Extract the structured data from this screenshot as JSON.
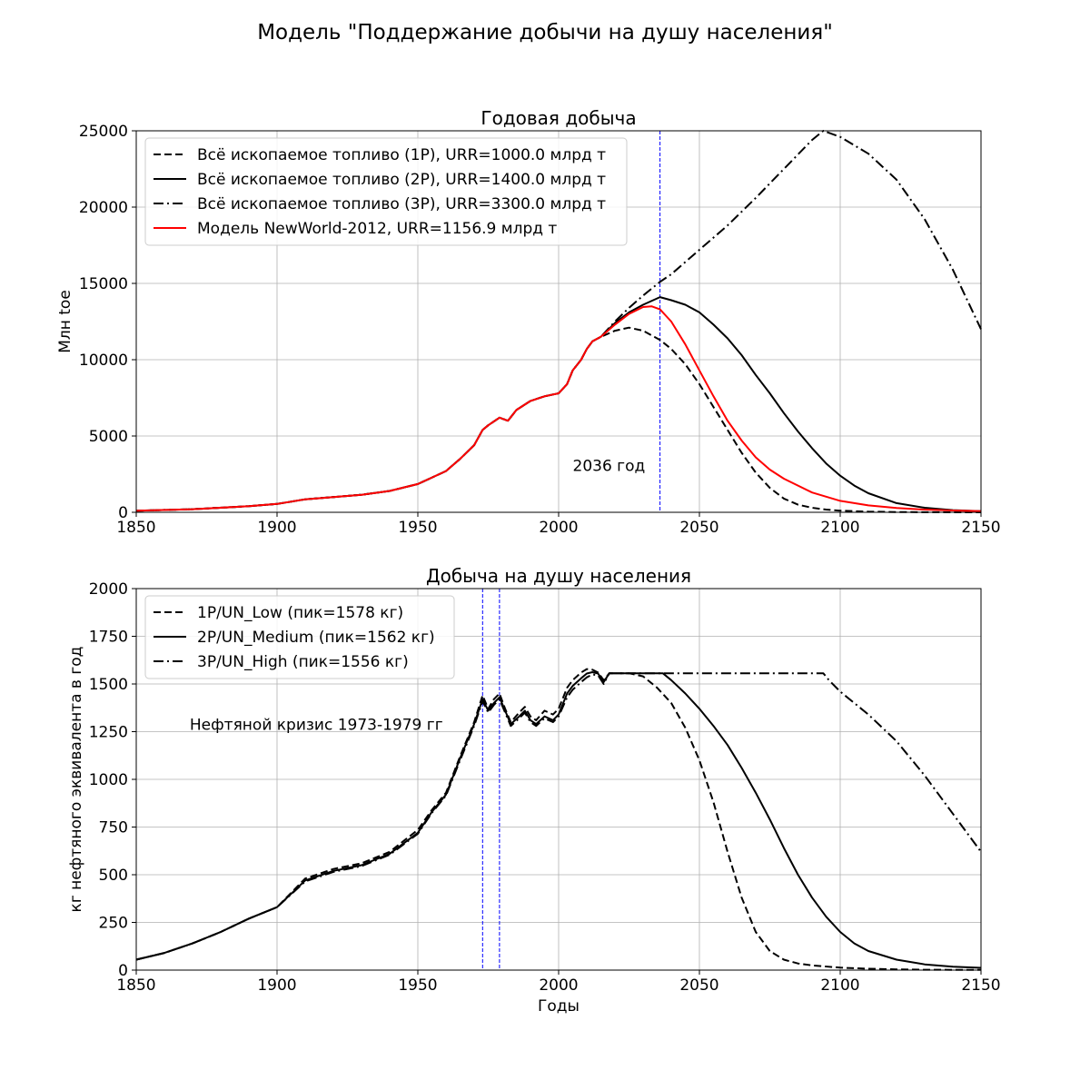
{
  "figure": {
    "suptitle": "Модель \"Поддержание добычи на душу населения\""
  },
  "chart_data": [
    {
      "type": "line",
      "title": "Годовая добыча",
      "xlabel": "",
      "ylabel": "Млн toe",
      "xlim": [
        1850,
        2150
      ],
      "ylim": [
        0,
        25000
      ],
      "xticks": [
        1850,
        1900,
        1950,
        2000,
        2050,
        2100,
        2150
      ],
      "yticks": [
        0,
        5000,
        10000,
        15000,
        20000,
        25000
      ],
      "grid": true,
      "legend_position": "top-left",
      "series": [
        {
          "name": "Всё ископаемое топливо (1P), URR=1000.0 млрд т",
          "style": "dashed",
          "color": "#000000",
          "x": [
            1850,
            1870,
            1890,
            1900,
            1910,
            1920,
            1930,
            1940,
            1950,
            1960,
            1965,
            1970,
            1973,
            1975,
            1979,
            1982,
            1985,
            1990,
            1995,
            2000,
            2003,
            2005,
            2008,
            2010,
            2012,
            2015,
            2020,
            2025,
            2030,
            2036,
            2040,
            2045,
            2050,
            2055,
            2060,
            2065,
            2070,
            2075,
            2080,
            2085,
            2090,
            2095,
            2100,
            2110,
            2120,
            2130,
            2150
          ],
          "y": [
            100,
            200,
            400,
            550,
            850,
            1000,
            1150,
            1400,
            1850,
            2700,
            3500,
            4400,
            5400,
            5700,
            6200,
            6000,
            6700,
            7300,
            7600,
            7800,
            8400,
            9300,
            10000,
            10700,
            11200,
            11500,
            11900,
            12100,
            11900,
            11300,
            10700,
            9700,
            8400,
            6900,
            5400,
            3900,
            2600,
            1600,
            900,
            500,
            300,
            180,
            110,
            40,
            15,
            5,
            1
          ]
        },
        {
          "name": "Всё ископаемое топливо (2P), URR=1400.0 млрд т",
          "style": "solid",
          "color": "#000000",
          "x": [
            1850,
            1870,
            1890,
            1900,
            1910,
            1920,
            1930,
            1940,
            1950,
            1960,
            1965,
            1970,
            1973,
            1975,
            1979,
            1982,
            1985,
            1990,
            1995,
            2000,
            2003,
            2005,
            2008,
            2010,
            2012,
            2015,
            2020,
            2025,
            2030,
            2036,
            2040,
            2045,
            2050,
            2055,
            2060,
            2065,
            2070,
            2075,
            2080,
            2085,
            2090,
            2095,
            2100,
            2105,
            2110,
            2120,
            2130,
            2140,
            2150
          ],
          "y": [
            100,
            200,
            400,
            550,
            850,
            1000,
            1150,
            1400,
            1850,
            2700,
            3500,
            4400,
            5400,
            5700,
            6200,
            6000,
            6700,
            7300,
            7600,
            7800,
            8400,
            9300,
            10000,
            10700,
            11200,
            11500,
            12400,
            13100,
            13600,
            14100,
            13900,
            13600,
            13100,
            12300,
            11400,
            10300,
            9000,
            7800,
            6500,
            5300,
            4200,
            3200,
            2400,
            1750,
            1250,
            600,
            300,
            140,
            70
          ]
        },
        {
          "name": "Всё ископаемое топливо (3P), URR=3300.0 млрд т",
          "style": "dashdot",
          "color": "#000000",
          "x": [
            1850,
            1870,
            1890,
            1900,
            1910,
            1920,
            1930,
            1940,
            1950,
            1960,
            1965,
            1970,
            1973,
            1975,
            1979,
            1982,
            1985,
            1990,
            1995,
            2000,
            2003,
            2005,
            2008,
            2010,
            2012,
            2015,
            2020,
            2025,
            2030,
            2036,
            2040,
            2050,
            2060,
            2070,
            2080,
            2090,
            2094,
            2100,
            2110,
            2120,
            2130,
            2140,
            2150
          ],
          "y": [
            100,
            200,
            400,
            550,
            850,
            1000,
            1150,
            1400,
            1850,
            2700,
            3500,
            4400,
            5400,
            5700,
            6200,
            6000,
            6700,
            7300,
            7600,
            7800,
            8400,
            9300,
            10000,
            10700,
            11200,
            11500,
            12500,
            13400,
            14200,
            15100,
            15600,
            17200,
            18800,
            20600,
            22500,
            24400,
            25000,
            24600,
            23500,
            21800,
            19200,
            15900,
            12000
          ]
        },
        {
          "name": "Модель NewWorld-2012, URR=1156.9 млрд т",
          "style": "solid",
          "color": "#ff0000",
          "x": [
            1850,
            1870,
            1890,
            1900,
            1910,
            1920,
            1930,
            1940,
            1950,
            1960,
            1965,
            1970,
            1973,
            1975,
            1979,
            1982,
            1985,
            1990,
            1995,
            2000,
            2003,
            2005,
            2008,
            2010,
            2012,
            2015,
            2020,
            2025,
            2030,
            2033,
            2036,
            2040,
            2045,
            2050,
            2055,
            2060,
            2065,
            2070,
            2075,
            2080,
            2090,
            2100,
            2110,
            2120,
            2130,
            2140,
            2150
          ],
          "y": [
            100,
            200,
            400,
            550,
            850,
            1000,
            1150,
            1400,
            1850,
            2700,
            3500,
            4400,
            5400,
            5700,
            6200,
            6000,
            6700,
            7300,
            7600,
            7800,
            8400,
            9300,
            10000,
            10700,
            11200,
            11500,
            12300,
            13000,
            13450,
            13500,
            13300,
            12500,
            11000,
            9300,
            7600,
            6000,
            4700,
            3600,
            2800,
            2200,
            1300,
            750,
            450,
            280,
            180,
            120,
            80
          ]
        }
      ],
      "vlines": [
        2036
      ],
      "annotations": [
        {
          "text": "2036 год",
          "x": 2005,
          "y": 2700
        }
      ]
    },
    {
      "type": "line",
      "title": "Добыча на душу населения",
      "xlabel": "Годы",
      "ylabel": "кг нефтяного эквивалента в год",
      "xlim": [
        1850,
        2150
      ],
      "ylim": [
        0,
        2000
      ],
      "xticks": [
        1850,
        1900,
        1950,
        2000,
        2050,
        2100,
        2150
      ],
      "yticks": [
        0,
        250,
        500,
        750,
        1000,
        1250,
        1500,
        1750,
        2000
      ],
      "grid": true,
      "legend_position": "top-left",
      "series": [
        {
          "name": "1P/UN_Low (пик=1578 кг)",
          "style": "dashed",
          "color": "#000000",
          "x": [
            1850,
            1860,
            1870,
            1880,
            1890,
            1900,
            1910,
            1920,
            1930,
            1940,
            1950,
            1955,
            1960,
            1965,
            1970,
            1973,
            1975,
            1977,
            1979,
            1981,
            1983,
            1986,
            1988,
            1990,
            1992,
            1995,
            1998,
            2000,
            2003,
            2005,
            2008,
            2010,
            2012,
            2014,
            2016,
            2018,
            2020,
            2025,
            2030,
            2035,
            2040,
            2045,
            2050,
            2055,
            2060,
            2065,
            2070,
            2075,
            2080,
            2085,
            2090,
            2100,
            2110,
            2120,
            2130,
            2150
          ],
          "y": [
            55,
            90,
            140,
            200,
            270,
            330,
            480,
            530,
            560,
            620,
            735,
            840,
            930,
            1120,
            1300,
            1440,
            1370,
            1420,
            1450,
            1370,
            1300,
            1350,
            1380,
            1330,
            1310,
            1360,
            1340,
            1370,
            1480,
            1520,
            1560,
            1578,
            1575,
            1560,
            1520,
            1556,
            1556,
            1556,
            1540,
            1480,
            1400,
            1270,
            1100,
            880,
            620,
            380,
            200,
            100,
            55,
            35,
            25,
            13,
            7,
            4,
            2,
            1
          ]
        },
        {
          "name": "2P/UN_Medium (пик=1562 кг)",
          "style": "solid",
          "color": "#000000",
          "x": [
            1850,
            1860,
            1870,
            1880,
            1890,
            1900,
            1910,
            1920,
            1930,
            1940,
            1950,
            1955,
            1960,
            1965,
            1970,
            1973,
            1975,
            1977,
            1979,
            1981,
            1983,
            1986,
            1988,
            1990,
            1992,
            1995,
            1998,
            2000,
            2003,
            2005,
            2008,
            2010,
            2012,
            2014,
            2016,
            2018,
            2020,
            2025,
            2030,
            2037,
            2040,
            2045,
            2050,
            2055,
            2060,
            2065,
            2070,
            2075,
            2080,
            2085,
            2090,
            2095,
            2100,
            2105,
            2110,
            2120,
            2130,
            2140,
            2150
          ],
          "y": [
            55,
            90,
            140,
            200,
            270,
            330,
            470,
            520,
            550,
            610,
            720,
            830,
            920,
            1110,
            1290,
            1420,
            1360,
            1400,
            1430,
            1360,
            1290,
            1330,
            1360,
            1310,
            1290,
            1330,
            1310,
            1340,
            1450,
            1490,
            1530,
            1555,
            1562,
            1555,
            1510,
            1556,
            1556,
            1556,
            1556,
            1556,
            1520,
            1450,
            1370,
            1280,
            1180,
            1060,
            930,
            790,
            640,
            500,
            380,
            280,
            200,
            140,
            100,
            55,
            30,
            18,
            12
          ]
        },
        {
          "name": "3P/UN_High (пик=1556 кг)",
          "style": "dashdot",
          "color": "#000000",
          "x": [
            1850,
            1860,
            1870,
            1880,
            1890,
            1900,
            1910,
            1920,
            1930,
            1940,
            1950,
            1955,
            1960,
            1965,
            1970,
            1973,
            1975,
            1977,
            1979,
            1981,
            1983,
            1986,
            1988,
            1990,
            1992,
            1995,
            1998,
            2000,
            2003,
            2005,
            2008,
            2010,
            2012,
            2014,
            2016,
            2018,
            2020,
            2030,
            2040,
            2050,
            2060,
            2070,
            2080,
            2090,
            2094,
            2096,
            2100,
            2110,
            2120,
            2130,
            2140,
            2150
          ],
          "y": [
            55,
            90,
            140,
            200,
            270,
            330,
            465,
            515,
            545,
            605,
            715,
            825,
            915,
            1100,
            1280,
            1410,
            1350,
            1390,
            1420,
            1350,
            1280,
            1320,
            1350,
            1300,
            1280,
            1320,
            1300,
            1330,
            1430,
            1470,
            1510,
            1535,
            1550,
            1545,
            1500,
            1556,
            1556,
            1556,
            1556,
            1556,
            1556,
            1556,
            1556,
            1556,
            1556,
            1520,
            1460,
            1340,
            1200,
            1020,
            820,
            620
          ]
        }
      ],
      "vlines": [
        1973,
        1979
      ],
      "annotations": [
        {
          "text": "Нефтяной кризис 1973-1979 гг",
          "x": 1869,
          "y": 1260
        }
      ]
    }
  ]
}
